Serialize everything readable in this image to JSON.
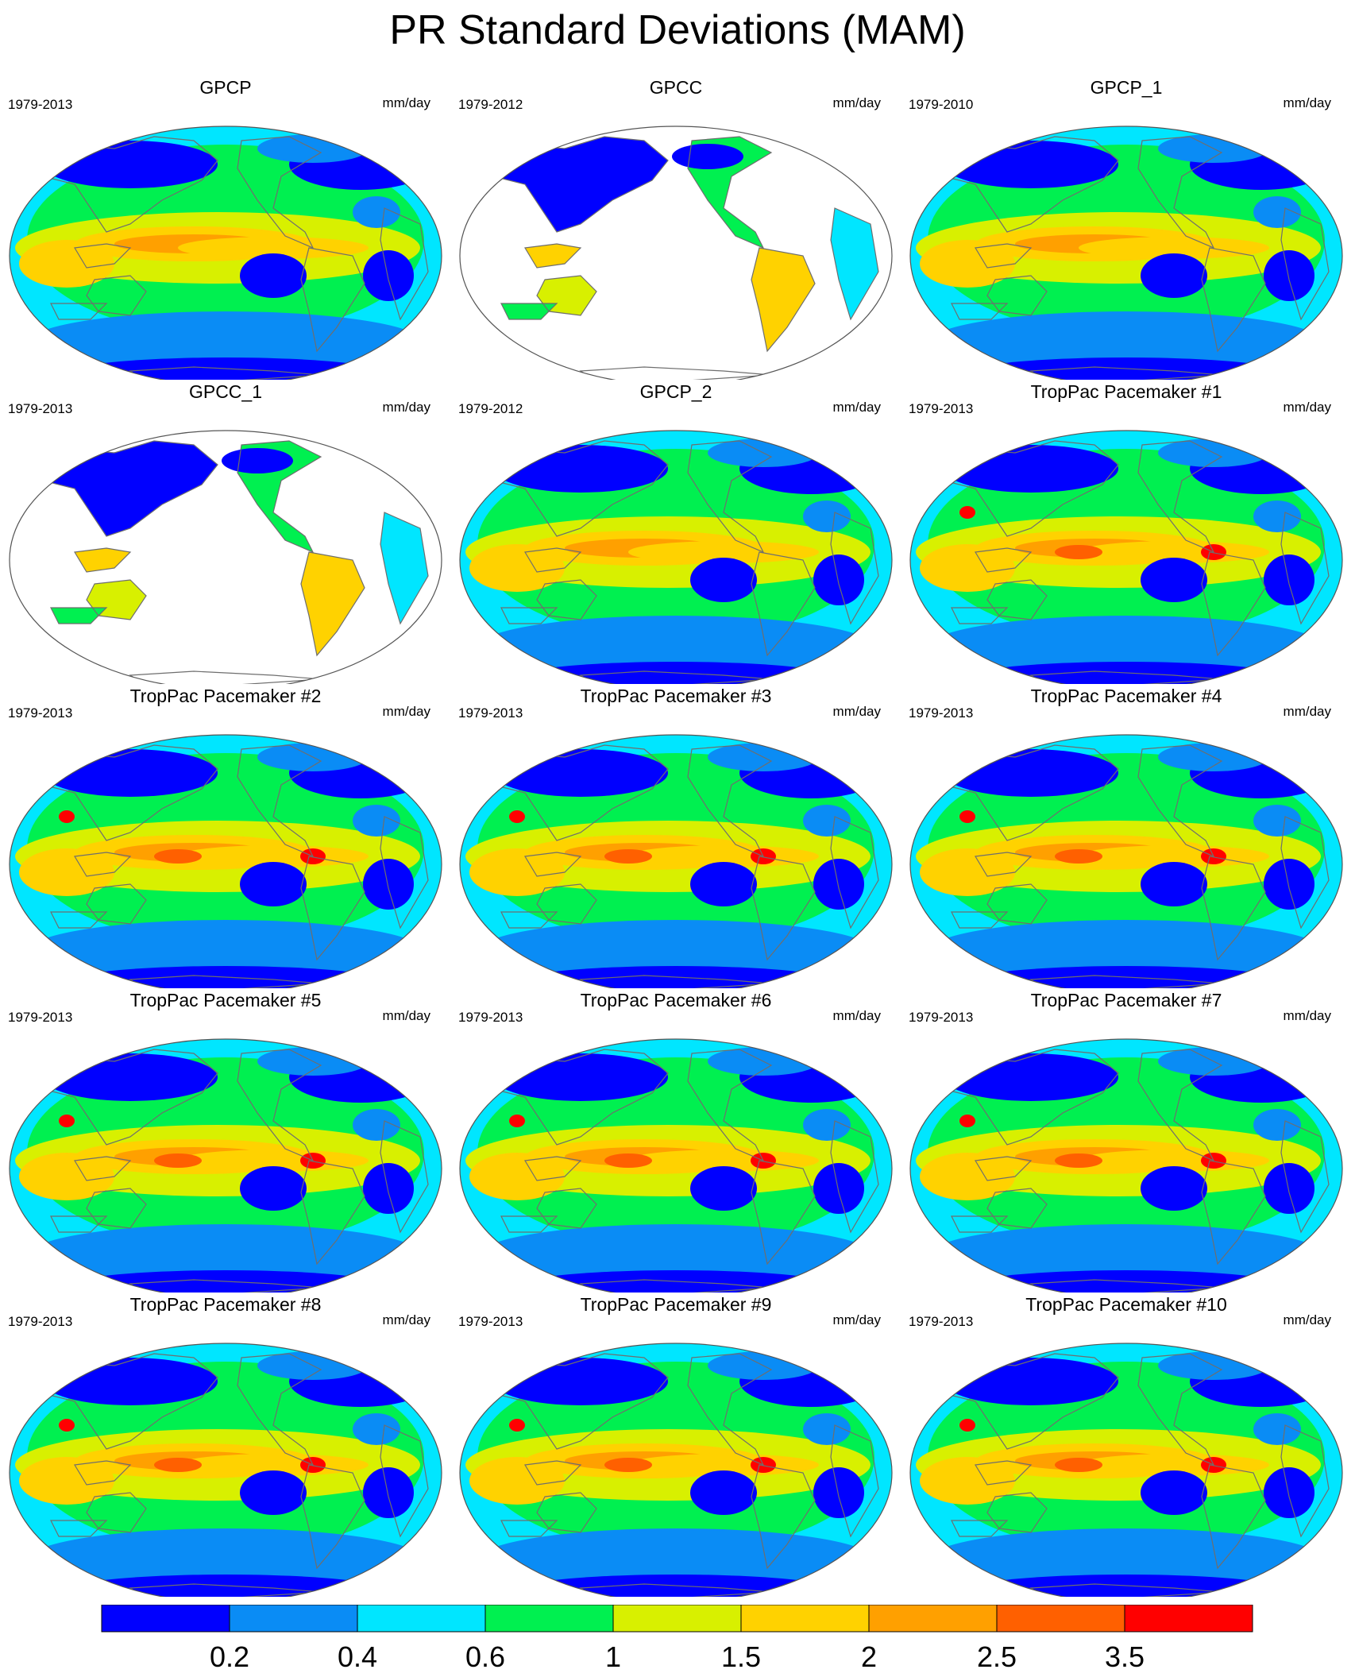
{
  "title": "PR Standard Deviations (MAM)",
  "units": "mm/day",
  "palette": [
    "#0000ff",
    "#0a8cf5",
    "#00e6ff",
    "#00f050",
    "#d8f000",
    "#ffd200",
    "#ffa000",
    "#ff6000",
    "#ff0000"
  ],
  "colorbar": {
    "labels": [
      "0.2",
      "0.4",
      "0.6",
      "1",
      "1.5",
      "2",
      "2.5",
      "3.5"
    ]
  },
  "panels": [
    {
      "title": "GPCP",
      "period": "1979-2013",
      "units": "mm/day",
      "type": "global"
    },
    {
      "title": "GPCC",
      "period": "1979-2012",
      "units": "mm/day",
      "type": "land"
    },
    {
      "title": "GPCP_1",
      "period": "1979-2010",
      "units": "mm/day",
      "type": "global"
    },
    {
      "title": "GPCC_1",
      "period": "1979-2013",
      "units": "mm/day",
      "type": "land"
    },
    {
      "title": "GPCP_2",
      "period": "1979-2012",
      "units": "mm/day",
      "type": "global"
    },
    {
      "title": "TropPac Pacemaker #1",
      "period": "1979-2013",
      "units": "mm/day",
      "type": "model"
    },
    {
      "title": "TropPac Pacemaker #2",
      "period": "1979-2013",
      "units": "mm/day",
      "type": "model"
    },
    {
      "title": "TropPac Pacemaker #3",
      "period": "1979-2013",
      "units": "mm/day",
      "type": "model"
    },
    {
      "title": "TropPac Pacemaker #4",
      "period": "1979-2013",
      "units": "mm/day",
      "type": "model"
    },
    {
      "title": "TropPac Pacemaker #5",
      "period": "1979-2013",
      "units": "mm/day",
      "type": "model"
    },
    {
      "title": "TropPac Pacemaker #6",
      "period": "1979-2013",
      "units": "mm/day",
      "type": "model"
    },
    {
      "title": "TropPac Pacemaker #7",
      "period": "1979-2013",
      "units": "mm/day",
      "type": "model"
    },
    {
      "title": "TropPac Pacemaker #8",
      "period": "1979-2013",
      "units": "mm/day",
      "type": "model"
    },
    {
      "title": "TropPac Pacemaker #9",
      "period": "1979-2013",
      "units": "mm/day",
      "type": "model"
    },
    {
      "title": "TropPac Pacemaker #10",
      "period": "1979-2013",
      "units": "mm/day",
      "type": "model"
    }
  ]
}
